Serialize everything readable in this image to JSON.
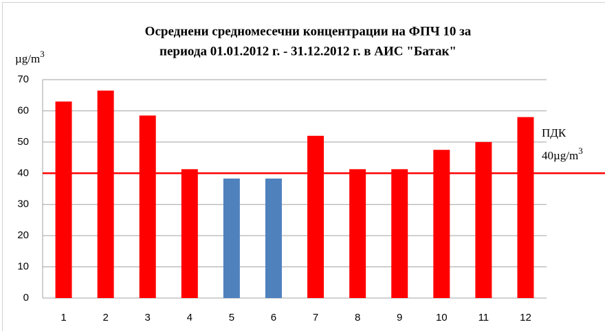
{
  "chart_data": {
    "type": "bar",
    "title": [
      "Осреднени средномесечни концентрации на ФПЧ 10 за",
      "периода 01.01.2012 г. - 31.12.2012 г. в АИС \"Батак\""
    ],
    "ylabel": "µg/m",
    "ylabel_sup": "3",
    "categories": [
      "1",
      "2",
      "3",
      "4",
      "5",
      "6",
      "7",
      "8",
      "9",
      "10",
      "11",
      "12"
    ],
    "values": [
      63,
      66.5,
      58.5,
      41.3,
      38.3,
      38.3,
      52,
      41.3,
      41.3,
      47.5,
      50,
      58
    ],
    "colors": [
      "#ff0000",
      "#ff0000",
      "#ff0000",
      "#ff0000",
      "#4f81bd",
      "#4f81bd",
      "#ff0000",
      "#ff0000",
      "#ff0000",
      "#ff0000",
      "#ff0000",
      "#ff0000"
    ],
    "threshold": 40,
    "threshold_color": "#ff0000",
    "annotation": [
      "ПДК",
      "40µg/m"
    ],
    "annotation_sup": "3",
    "ylim": [
      0,
      70
    ],
    "yticks": [
      0,
      10,
      20,
      30,
      40,
      50,
      60,
      70
    ],
    "grid": true
  }
}
